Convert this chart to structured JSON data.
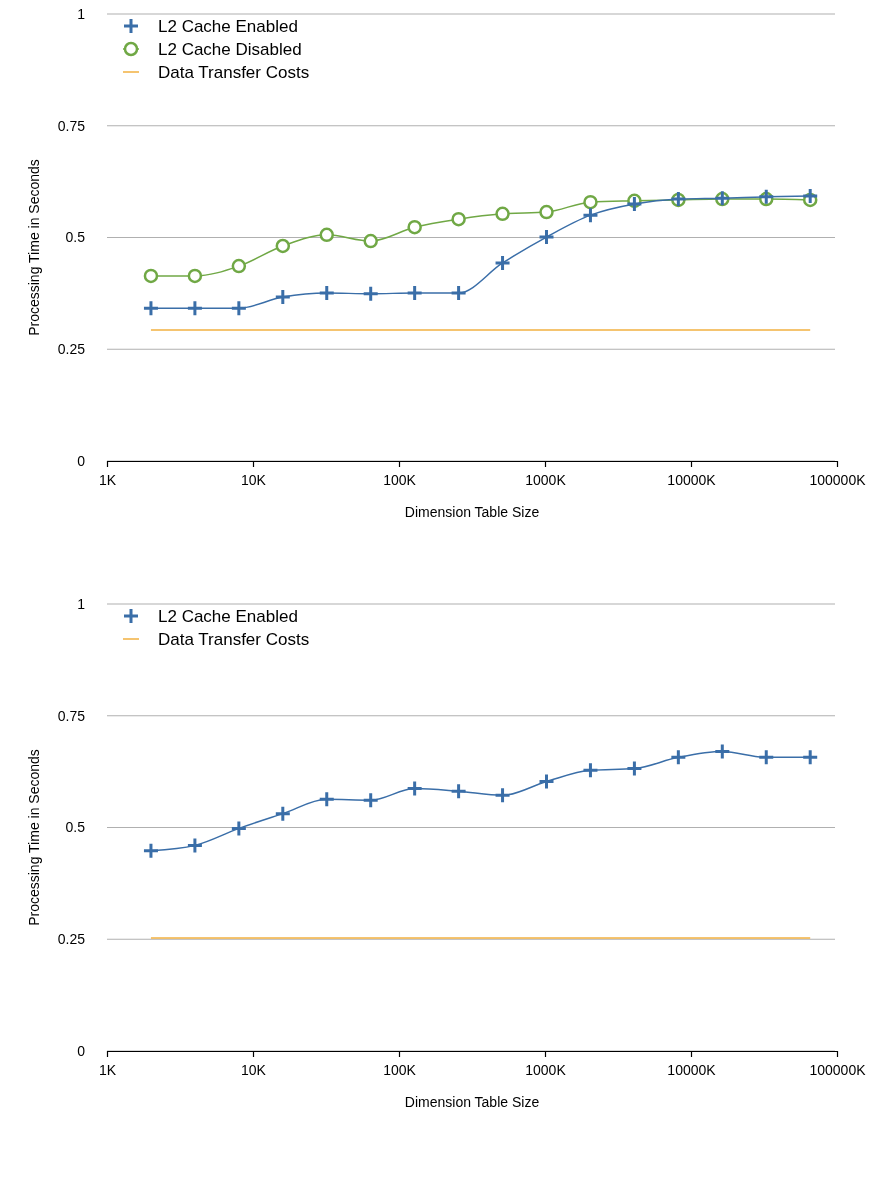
{
  "chart_data": [
    {
      "type": "line",
      "xlabel": "Dimension Table Size",
      "ylabel": "Processing Time in Seconds",
      "log": "x",
      "grid": "y",
      "legend": "top left",
      "xlim": [
        1,
        100000
      ],
      "ylim": [
        0,
        1
      ],
      "xticks": [
        {
          "value": 1,
          "label": "1K"
        },
        {
          "value": 10,
          "label": "10K"
        },
        {
          "value": 100,
          "label": "100K"
        },
        {
          "value": 1000,
          "label": "1000K"
        },
        {
          "value": 10000,
          "label": "10000K"
        },
        {
          "value": 100000,
          "label": "100000K"
        }
      ],
      "yticks": [
        0,
        0.25,
        0.5,
        0.75,
        1
      ],
      "x": [
        2,
        4,
        8,
        16,
        32,
        64,
        128,
        256,
        512,
        1024,
        2048,
        4096,
        8192,
        16384,
        32768,
        65536
      ],
      "series": [
        {
          "name": "L2 Cache Enabled",
          "color": "#3a6ea8",
          "marker": "cross",
          "values": [
            0.342,
            0.342,
            0.342,
            0.367,
            0.376,
            0.374,
            0.376,
            0.376,
            0.443,
            0.501,
            0.55,
            0.575,
            0.586,
            0.588,
            0.591,
            0.593
          ]
        },
        {
          "name": "L2 Cache Disabled",
          "color": "#70a845",
          "marker": "circle",
          "values": [
            0.414,
            0.414,
            0.436,
            0.481,
            0.506,
            0.492,
            0.523,
            0.541,
            0.553,
            0.557,
            0.579,
            0.582,
            0.584,
            0.586,
            0.586,
            0.584
          ]
        },
        {
          "name": "Data Transfer Costs",
          "color": "#f2b040",
          "marker": "none",
          "values": [
            0.293,
            0.293,
            0.293,
            0.293,
            0.293,
            0.293,
            0.293,
            0.293,
            0.293,
            0.293,
            0.293,
            0.293,
            0.293,
            0.293,
            0.293,
            0.293
          ]
        }
      ]
    },
    {
      "type": "line",
      "xlabel": "Dimension Table Size",
      "ylabel": "Processing Time in Seconds",
      "log": "x",
      "grid": "y",
      "legend": "top left",
      "xlim": [
        1,
        100000
      ],
      "ylim": [
        0,
        1
      ],
      "xticks": [
        {
          "value": 1,
          "label": "1K"
        },
        {
          "value": 10,
          "label": "10K"
        },
        {
          "value": 100,
          "label": "100K"
        },
        {
          "value": 1000,
          "label": "1000K"
        },
        {
          "value": 10000,
          "label": "10000K"
        },
        {
          "value": 100000,
          "label": "100000K"
        }
      ],
      "yticks": [
        0,
        0.25,
        0.5,
        0.75,
        1
      ],
      "x": [
        2,
        4,
        8,
        16,
        32,
        64,
        128,
        256,
        512,
        1024,
        2048,
        4096,
        8192,
        16384,
        32768,
        65536
      ],
      "series": [
        {
          "name": "L2 Cache Enabled",
          "color": "#3a6ea8",
          "marker": "cross",
          "values": [
            0.448,
            0.46,
            0.498,
            0.531,
            0.563,
            0.561,
            0.587,
            0.581,
            0.572,
            0.603,
            0.628,
            0.632,
            0.657,
            0.67,
            0.657,
            0.657
          ]
        },
        {
          "name": "Data Transfer Costs",
          "color": "#f2b040",
          "marker": "none",
          "values": [
            0.253,
            0.253,
            0.253,
            0.253,
            0.253,
            0.253,
            0.253,
            0.253,
            0.253,
            0.253,
            0.253,
            0.253,
            0.253,
            0.253,
            0.253,
            0.253
          ]
        }
      ]
    }
  ]
}
